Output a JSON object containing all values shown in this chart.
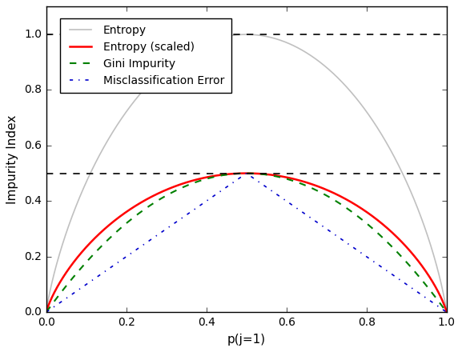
{
  "xlabel": "p(j=1)",
  "ylabel": "Impurity Index",
  "xlim": [
    0.0,
    1.0
  ],
  "ylim": [
    0.0,
    1.1
  ],
  "hlines": [
    1.0,
    0.5
  ],
  "background_color": "#c8c8c8",
  "plot_bg_color": "#ffffff",
  "entropy_color": "#c0c0c0",
  "entropy_lw": 1.2,
  "entropy_scaled_color": "#ff0000",
  "entropy_scaled_lw": 1.8,
  "gini_color": "#008000",
  "gini_lw": 1.5,
  "gini_ls": "--",
  "misclass_color": "#0000cc",
  "misclass_lw": 1.2,
  "misclass_ls": "-.",
  "legend_labels": [
    "Entropy",
    "Entropy (scaled)",
    "Gini Impurity",
    "Misclassification Error"
  ],
  "yticks": [
    0.0,
    0.2,
    0.4,
    0.6,
    0.8,
    1.0
  ],
  "xticks": [
    0.0,
    0.2,
    0.4,
    0.6,
    0.8,
    1.0
  ]
}
